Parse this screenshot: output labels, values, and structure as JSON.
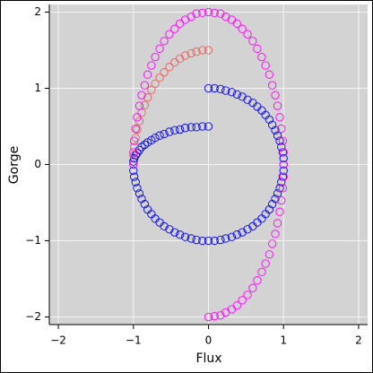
{
  "chart_data": {
    "type": "scatter",
    "x_label": "Flux",
    "y_label": "Gorge",
    "grid": true,
    "xlim": [
      -2.12,
      2.12
    ],
    "ylim": [
      -2.1,
      2.1
    ],
    "xticks": [
      {
        "value": -2,
        "label": "−2"
      },
      {
        "value": -1,
        "label": "−1"
      },
      0,
      1,
      2
    ],
    "yticks": [
      {
        "value": -2,
        "label": "−2"
      },
      {
        "value": -1,
        "label": "−1"
      },
      0,
      1,
      2
    ],
    "series": [
      {
        "color": "#0000ff",
        "x": [
          0,
          0.08,
          0.16,
          0.23,
          0.31,
          0.38,
          0.45,
          0.52,
          0.59,
          0.65,
          0.71,
          0.76,
          0.81,
          0.85,
          0.89,
          0.92,
          0.95,
          0.97,
          0.99,
          1,
          1,
          1,
          0.99,
          0.97,
          0.95,
          0.92,
          0.89,
          0.85,
          0.81,
          0.76,
          0.71,
          0.65,
          0.59,
          0.52,
          0.45,
          0.38,
          0.31,
          0.23,
          0.16,
          0.08,
          0,
          -0.08,
          -0.16,
          -0.23,
          -0.31,
          -0.38,
          -0.45,
          -0.52,
          -0.59,
          -0.65,
          -0.71,
          -0.76,
          -0.81,
          -0.85,
          -0.89,
          -0.92,
          -0.95,
          -0.97,
          -0.99,
          -1,
          -1,
          -1,
          -0.99,
          -0.97,
          -0.95,
          -0.92,
          -0.89,
          -0.85,
          -0.81,
          -0.76,
          -0.71,
          -0.65,
          -0.59,
          -0.52,
          -0.45,
          -0.38,
          -0.31,
          -0.23,
          -0.16,
          -0.08,
          0
        ],
        "y": [
          1,
          1,
          0.99,
          0.97,
          0.95,
          0.92,
          0.89,
          0.85,
          0.81,
          0.76,
          0.71,
          0.65,
          0.59,
          0.52,
          0.45,
          0.38,
          0.31,
          0.23,
          0.16,
          0.08,
          0,
          -0.08,
          -0.16,
          -0.23,
          -0.31,
          -0.38,
          -0.45,
          -0.52,
          -0.59,
          -0.65,
          -0.71,
          -0.76,
          -0.81,
          -0.85,
          -0.89,
          -0.92,
          -0.95,
          -0.97,
          -0.99,
          -1,
          -1,
          -1,
          -0.99,
          -0.97,
          -0.95,
          -0.92,
          -0.89,
          -0.85,
          -0.81,
          -0.76,
          -0.71,
          -0.65,
          -0.59,
          -0.52,
          -0.45,
          -0.38,
          -0.31,
          -0.23,
          -0.16,
          -0.08,
          0,
          0.04,
          0.08,
          0.12,
          0.15,
          0.19,
          0.23,
          0.26,
          0.29,
          0.32,
          0.35,
          0.38,
          0.4,
          0.43,
          0.45,
          0.46,
          0.48,
          0.49,
          0.49,
          0.5,
          0.5
        ]
      },
      {
        "color": "#e8605c",
        "x": [
          0,
          -0.08,
          -0.16,
          -0.23,
          -0.31,
          -0.38,
          -0.45,
          -0.52,
          -0.59,
          -0.65,
          -0.71,
          -0.76,
          -0.81,
          -0.85,
          -0.89,
          -0.92,
          -0.95,
          -0.97,
          -0.99,
          -1,
          -1
        ],
        "y": [
          1.5,
          1.5,
          1.48,
          1.46,
          1.43,
          1.39,
          1.34,
          1.28,
          1.21,
          1.14,
          1.06,
          0.98,
          0.88,
          0.78,
          0.68,
          0.57,
          0.46,
          0.35,
          0.23,
          0.12,
          0
        ]
      },
      {
        "color": "#ff00ff",
        "x": [
          0,
          0.08,
          0.16,
          0.23,
          0.31,
          0.38,
          0.45,
          0.52,
          0.59,
          0.65,
          0.71,
          0.76,
          0.81,
          0.85,
          0.89,
          0.92,
          0.95,
          0.97,
          0.99,
          1,
          1,
          1,
          0.99,
          0.97,
          0.95,
          0.92,
          0.89,
          0.85,
          0.81,
          0.76,
          0.71,
          0.65,
          0.59,
          0.52,
          0.45,
          0.38,
          0.31,
          0.23,
          0.16,
          0.08,
          0,
          -0.08,
          -0.16,
          -0.23,
          -0.31,
          -0.38,
          -0.45,
          -0.52,
          -0.59,
          -0.65,
          -0.71,
          -0.76,
          -0.81,
          -0.85,
          -0.89,
          -0.92,
          -0.95,
          -0.97,
          -0.99,
          -1,
          -1
        ],
        "y": [
          -2,
          -1.99,
          -1.98,
          -1.94,
          -1.9,
          -1.85,
          -1.78,
          -1.71,
          -1.62,
          -1.52,
          -1.41,
          -1.3,
          -1.18,
          -1.04,
          -0.91,
          -0.77,
          -0.62,
          -0.47,
          -0.31,
          -0.16,
          0,
          0.16,
          0.31,
          0.47,
          0.62,
          0.77,
          0.91,
          1.04,
          1.18,
          1.3,
          1.41,
          1.52,
          1.62,
          1.71,
          1.78,
          1.85,
          1.9,
          1.94,
          1.98,
          1.99,
          2,
          1.99,
          1.98,
          1.94,
          1.9,
          1.85,
          1.78,
          1.71,
          1.62,
          1.52,
          1.41,
          1.3,
          1.18,
          1.04,
          0.91,
          0.77,
          0.62,
          0.47,
          0.31,
          0.16,
          0
        ]
      }
    ]
  }
}
